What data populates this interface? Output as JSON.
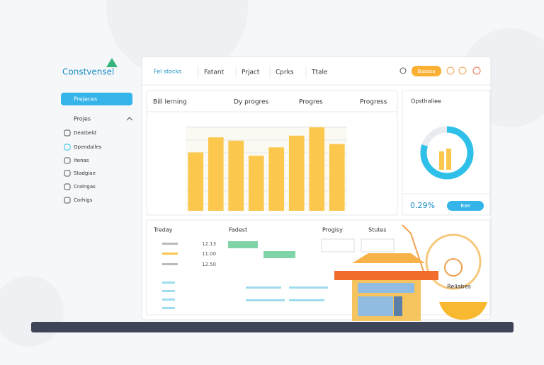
{
  "logo": "Constvensel",
  "sidebar": {
    "active": "Prejeces",
    "section": "Projes",
    "items": [
      "Deatbeld",
      "Opendalles",
      "Itenas",
      "Stadgiae",
      "Cralngas",
      "Corhigs"
    ]
  },
  "topbar": {
    "dropdown": "Fel stocks",
    "tabs": [
      "Fatant",
      "Prjact",
      "Cprks",
      "Ttale"
    ],
    "button": "Bassaa"
  },
  "chart_panel": {
    "tabs": [
      "Bill lerning",
      "Dy progres",
      "Progres",
      "Progress"
    ],
    "bars": {
      "values": [
        70,
        88,
        84,
        66,
        76,
        90,
        100,
        80
      ],
      "ylim": [
        0,
        100
      ],
      "color": "#fbc74d"
    }
  },
  "donut_panel": {
    "title": "Opsthaliee",
    "percent": 80,
    "label": "0.29%",
    "button": "Bae"
  },
  "bottom_panel": {
    "headers": [
      "Treday",
      "Fadest",
      "Progisy",
      "Stutes"
    ],
    "rows": [
      "12.13",
      "11.00",
      "12.50"
    ],
    "caption": "Reliabes"
  }
}
